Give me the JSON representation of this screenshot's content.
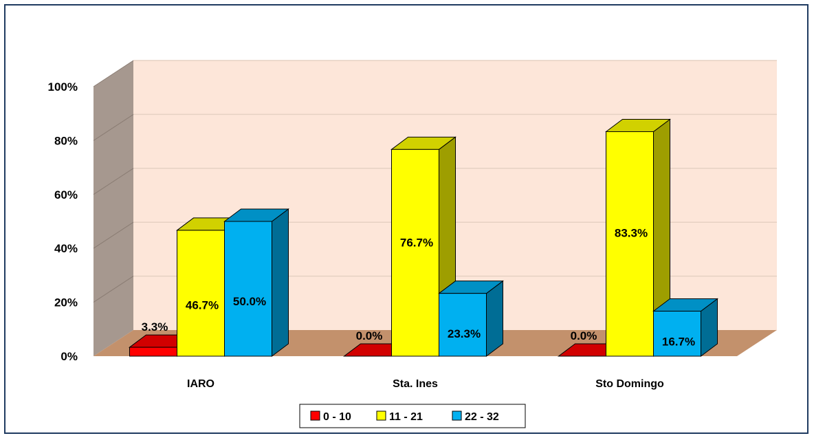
{
  "chart_data": {
    "type": "bar",
    "style": "3d-clustered-column",
    "categories": [
      "IARO",
      "Sta. Ines",
      "Sto Domingo"
    ],
    "series": [
      {
        "name": "0 - 10",
        "color": "#ff0000",
        "values": [
          3.3,
          0.0,
          0.0
        ],
        "labels": [
          "3.3%",
          "0.0%",
          "0.0%"
        ]
      },
      {
        "name": "11 - 21",
        "color": "#ffff00",
        "values": [
          46.7,
          76.7,
          83.3
        ],
        "labels": [
          "46.7%",
          "76.7%",
          "83.3%"
        ]
      },
      {
        "name": "22 - 32",
        "color": "#00b0f0",
        "values": [
          50.0,
          23.3,
          16.7
        ],
        "labels": [
          "50.0%",
          "23.3%",
          "16.7%"
        ]
      }
    ],
    "yticks": [
      "0%",
      "20%",
      "40%",
      "60%",
      "80%",
      "100%"
    ],
    "ylim": [
      0,
      100
    ],
    "grid": true,
    "legend_position": "bottom",
    "colors": {
      "back_wall": "#fde6d9",
      "side_wall": "#a6988f",
      "floor": "#c3916c",
      "gridline": "#e6d1c3"
    }
  }
}
